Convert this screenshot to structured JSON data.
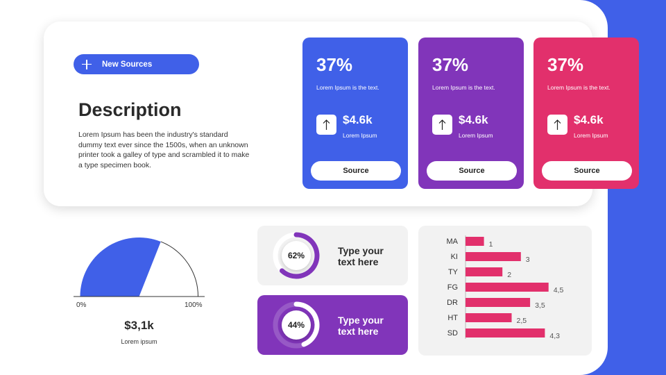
{
  "colors": {
    "blue": "#4060e8",
    "purple": "#8135ba",
    "pink": "#e2306c",
    "light": "#f2f2f2"
  },
  "header": {
    "pill": {
      "icon": "plus-icon",
      "label": "New Sources"
    },
    "title": "Description",
    "body": "Lorem Ipsum has been the industry's standard dummy text ever since the 1500s, when an unknown printer took a galley of type and scrambled it to make a type specimen book."
  },
  "stat_cards": [
    {
      "percent": "37%",
      "subtitle": "Lorem Ipsum is the text.",
      "icon": "arrow-up-icon",
      "value": "$4.6k",
      "value_sub": "Lorem Ipsum",
      "button": "Source",
      "color": "#4060e8"
    },
    {
      "percent": "37%",
      "subtitle": "Lorem Ipsum is the text.",
      "icon": "arrow-up-icon",
      "value": "$4.6k",
      "value_sub": "Lorem Ipsum",
      "button": "Source",
      "color": "#8135ba"
    },
    {
      "percent": "37%",
      "subtitle": "Lorem Ipsum is the text.",
      "icon": "arrow-up-icon",
      "value": "$4.6k",
      "value_sub": "Lorem Ipsum",
      "button": "Source",
      "color": "#e2306c"
    }
  ],
  "gauge": {
    "min_label": "0%",
    "max_label": "100%",
    "fraction": 0.62,
    "value": "$3,1k",
    "sub": "Lorem ipsum"
  },
  "rings": [
    {
      "percent_label": "62%",
      "fraction": 0.62,
      "text": [
        "Type your",
        "text here"
      ],
      "bg": "#f2f2f2",
      "text_color": "#2a2a2a",
      "ring_color": "#8135ba"
    },
    {
      "percent_label": "44%",
      "fraction": 0.44,
      "text": [
        "Type your",
        "text here"
      ],
      "bg": "#8135ba",
      "text_color": "#ffffff",
      "ring_color": "#ffffff"
    }
  ],
  "chart_data": {
    "type": "bar",
    "orientation": "horizontal",
    "categories": [
      "MA",
      "KI",
      "TY",
      "FG",
      "DR",
      "HT",
      "SD"
    ],
    "values": [
      1,
      3,
      2,
      4.5,
      3.5,
      2.5,
      4.3
    ],
    "value_labels": [
      "1",
      "3",
      "2",
      "4,5",
      "3,5",
      "2,5",
      "4,3"
    ],
    "bar_color": "#e2306c"
  }
}
